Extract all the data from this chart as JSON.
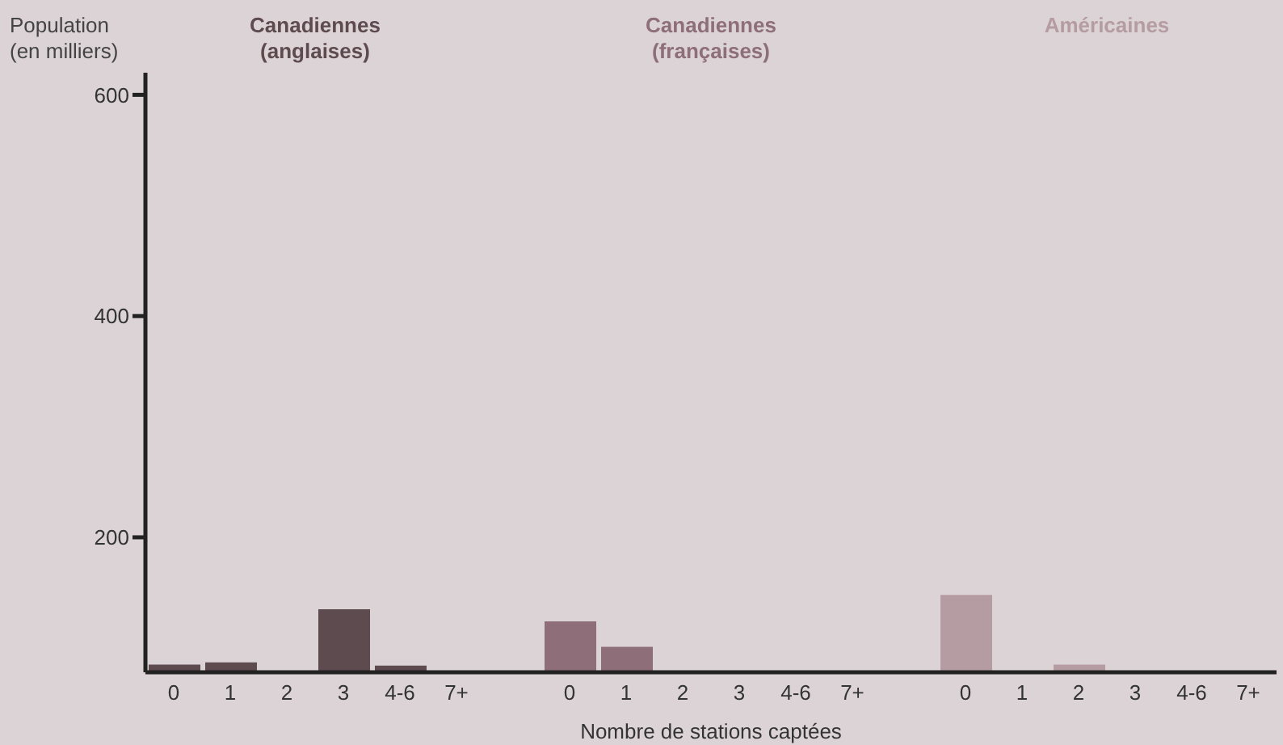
{
  "chart_data": {
    "type": "bar",
    "ylabel": "Population (en milliers)",
    "xlabel": "Nombre de stations captées",
    "categories": [
      "0",
      "1",
      "2",
      "3",
      "4-6",
      "7+",
      null,
      "0",
      "1",
      "2",
      "3",
      "4-6",
      "7+",
      null,
      "0",
      "1",
      "2",
      "3",
      "4-6",
      "7+"
    ],
    "series": [
      {
        "name": "Canadiennes (anglaises)",
        "color": "#5e4b50",
        "values": [
          85,
          87,
          null,
          135,
          84,
          null,
          null,
          null,
          null,
          null,
          null,
          null,
          null,
          null,
          null,
          null,
          null,
          null,
          null,
          null
        ]
      },
      {
        "name": "Canadiennes (françaises)",
        "color": "#8e6e78",
        "values": [
          null,
          null,
          null,
          null,
          null,
          null,
          null,
          124,
          101,
          null,
          null,
          null,
          null,
          null,
          null,
          null,
          null,
          null,
          null,
          null
        ]
      },
      {
        "name": "Américaines",
        "color": "#b59ca3",
        "values": [
          null,
          null,
          null,
          null,
          null,
          null,
          null,
          null,
          null,
          null,
          null,
          null,
          null,
          null,
          148,
          null,
          85,
          null,
          null,
          null
        ]
      }
    ],
    "ylim": [
      78,
      620
    ],
    "yticks": [
      200,
      400,
      600
    ],
    "grid": false
  }
}
